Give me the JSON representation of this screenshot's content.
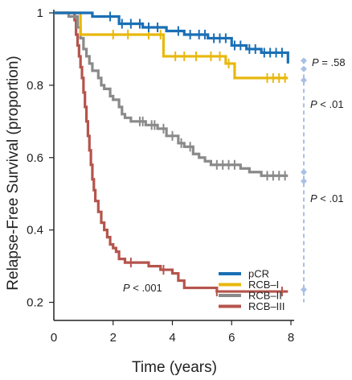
{
  "chart_data": {
    "type": "line",
    "subtype": "kaplan-meier step curves with censor ticks",
    "xlabel": "Time (years)",
    "ylabel": "Relapse-Free Survival (proportion)",
    "xlim": [
      0,
      8
    ],
    "ylim": [
      0.15,
      1.0
    ],
    "x_ticks": [
      0,
      2,
      4,
      6,
      8
    ],
    "x_tick_labels": [
      "0",
      "2",
      "4",
      "6",
      "8"
    ],
    "y_ticks": [
      0.2,
      0.4,
      0.6,
      0.8,
      1.0
    ],
    "y_tick_labels": [
      "0.2",
      "0.4",
      "0.6",
      "0.8",
      "1"
    ],
    "grid": false,
    "legend_position": "bottom-right",
    "series": [
      {
        "name": "pCR",
        "color": "#1a6fb5",
        "steps": [
          [
            0,
            1.0
          ],
          [
            1.3,
            0.99
          ],
          [
            2.2,
            0.97
          ],
          [
            3.0,
            0.96
          ],
          [
            3.8,
            0.95
          ],
          [
            4.4,
            0.94
          ],
          [
            5.2,
            0.93
          ],
          [
            6.0,
            0.91
          ],
          [
            6.5,
            0.9
          ],
          [
            7.0,
            0.89
          ],
          [
            7.9,
            0.86
          ]
        ],
        "end": 7.9,
        "censored": [
          1.9,
          2.3,
          2.6,
          2.9,
          3.2,
          3.5,
          4.2,
          4.6,
          4.9,
          5.1,
          5.4,
          5.6,
          5.8,
          6.1,
          6.3,
          6.6,
          6.8,
          7.1,
          7.3,
          7.5,
          7.7
        ]
      },
      {
        "name": "RCB–I",
        "color": "#e8b80c",
        "steps": [
          [
            0,
            1.0
          ],
          [
            0.9,
            0.94
          ],
          [
            3.7,
            0.88
          ],
          [
            5.8,
            0.86
          ],
          [
            6.1,
            0.82
          ]
        ],
        "end": 7.9,
        "censored": [
          2.0,
          2.5,
          3.2,
          3.6,
          4.1,
          4.4,
          4.8,
          5.3,
          5.6,
          5.9,
          7.2,
          7.4,
          7.6,
          7.8
        ]
      },
      {
        "name": "RCB–II",
        "color": "#8a8a8a",
        "steps": [
          [
            0,
            1.0
          ],
          [
            0.5,
            0.99
          ],
          [
            0.8,
            0.96
          ],
          [
            0.9,
            0.93
          ],
          [
            1.0,
            0.9
          ],
          [
            1.1,
            0.88
          ],
          [
            1.2,
            0.86
          ],
          [
            1.3,
            0.84
          ],
          [
            1.5,
            0.82
          ],
          [
            1.6,
            0.8
          ],
          [
            1.7,
            0.79
          ],
          [
            1.9,
            0.77
          ],
          [
            2.0,
            0.76
          ],
          [
            2.2,
            0.74
          ],
          [
            2.3,
            0.72
          ],
          [
            2.4,
            0.71
          ],
          [
            2.6,
            0.7
          ],
          [
            3.1,
            0.69
          ],
          [
            3.5,
            0.68
          ],
          [
            3.8,
            0.66
          ],
          [
            4.2,
            0.64
          ],
          [
            4.4,
            0.63
          ],
          [
            4.7,
            0.61
          ],
          [
            4.9,
            0.6
          ],
          [
            5.1,
            0.59
          ],
          [
            5.3,
            0.58
          ],
          [
            6.3,
            0.57
          ],
          [
            6.6,
            0.56
          ],
          [
            7.0,
            0.55
          ]
        ],
        "end": 7.9,
        "censored": [
          2.9,
          3.0,
          3.3,
          3.4,
          3.7,
          4.0,
          4.3,
          4.6,
          5.5,
          5.7,
          5.9,
          6.1,
          7.2,
          7.4,
          7.6,
          7.8
        ]
      },
      {
        "name": "RCB–III",
        "color": "#b5544c",
        "steps": [
          [
            0,
            1.0
          ],
          [
            0.7,
            0.98
          ],
          [
            0.75,
            0.94
          ],
          [
            0.8,
            0.91
          ],
          [
            0.85,
            0.88
          ],
          [
            0.9,
            0.85
          ],
          [
            0.95,
            0.82
          ],
          [
            1.0,
            0.78
          ],
          [
            1.05,
            0.74
          ],
          [
            1.1,
            0.7
          ],
          [
            1.15,
            0.66
          ],
          [
            1.2,
            0.62
          ],
          [
            1.25,
            0.58
          ],
          [
            1.3,
            0.54
          ],
          [
            1.35,
            0.51
          ],
          [
            1.4,
            0.48
          ],
          [
            1.5,
            0.45
          ],
          [
            1.6,
            0.42
          ],
          [
            1.7,
            0.4
          ],
          [
            1.8,
            0.38
          ],
          [
            1.9,
            0.36
          ],
          [
            2.0,
            0.35
          ],
          [
            2.1,
            0.34
          ],
          [
            2.2,
            0.32
          ],
          [
            2.4,
            0.31
          ],
          [
            3.2,
            0.3
          ],
          [
            3.6,
            0.29
          ],
          [
            4.0,
            0.28
          ],
          [
            4.2,
            0.26
          ],
          [
            4.4,
            0.24
          ],
          [
            5.5,
            0.23
          ]
        ],
        "end": 7.9,
        "censored": [
          2.6,
          3.7,
          5.5,
          7.7
        ]
      }
    ],
    "annotations": {
      "inset_p": {
        "italic": "P",
        "text": " < .001"
      },
      "right_p": [
        {
          "italic": "P",
          "text": " = .58"
        },
        {
          "italic": "P",
          "text": " < .01"
        },
        {
          "italic": "P",
          "text": " < .01"
        }
      ],
      "bracket_color": "#a9bfe6"
    }
  }
}
